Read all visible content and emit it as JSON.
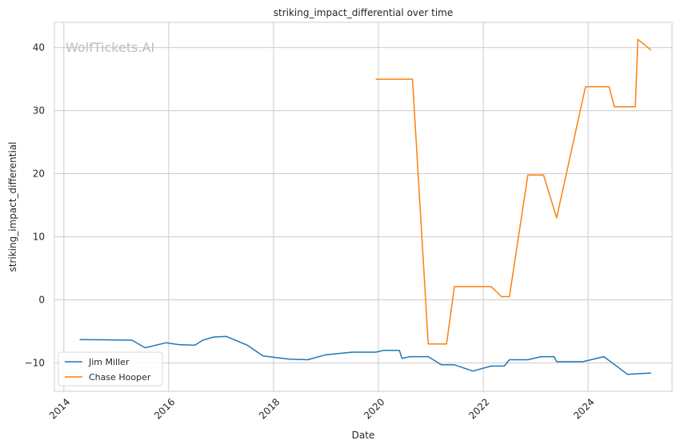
{
  "chart_data": {
    "type": "line",
    "title": "striking_impact_differential over time",
    "xlabel": "Date",
    "ylabel": "striking_impact_differential",
    "watermark": "WolfTickets.AI",
    "xlim": [
      2013.82,
      2025.6
    ],
    "ylim": [
      -14.5,
      44
    ],
    "x_ticks": [
      2014,
      2016,
      2018,
      2020,
      2022,
      2024
    ],
    "x_tick_labels": [
      "2014",
      "2016",
      "2018",
      "2020",
      "2022",
      "2024"
    ],
    "y_ticks": [
      -10,
      0,
      10,
      20,
      30,
      40
    ],
    "y_tick_labels": [
      "−10",
      "0",
      "10",
      "20",
      "30",
      "40"
    ],
    "grid": true,
    "legend_position": "lower-left",
    "series": [
      {
        "name": "Jim Miller",
        "color": "#1f77b4",
        "points": [
          [
            2014.3,
            -6.3
          ],
          [
            2015.3,
            -6.4
          ],
          [
            2015.55,
            -7.6
          ],
          [
            2015.95,
            -6.8
          ],
          [
            2016.2,
            -7.1
          ],
          [
            2016.5,
            -7.2
          ],
          [
            2016.65,
            -6.4
          ],
          [
            2016.85,
            -5.9
          ],
          [
            2017.1,
            -5.8
          ],
          [
            2017.5,
            -7.2
          ],
          [
            2017.8,
            -8.9
          ],
          [
            2018.3,
            -9.4
          ],
          [
            2018.65,
            -9.5
          ],
          [
            2019.0,
            -8.7
          ],
          [
            2019.5,
            -8.3
          ],
          [
            2019.95,
            -8.3
          ],
          [
            2020.1,
            -8.0
          ],
          [
            2020.4,
            -8.0
          ],
          [
            2020.45,
            -9.3
          ],
          [
            2020.6,
            -9.0
          ],
          [
            2020.95,
            -9.0
          ],
          [
            2021.2,
            -10.3
          ],
          [
            2021.45,
            -10.3
          ],
          [
            2021.8,
            -11.3
          ],
          [
            2022.15,
            -10.5
          ],
          [
            2022.4,
            -10.5
          ],
          [
            2022.5,
            -9.5
          ],
          [
            2022.85,
            -9.5
          ],
          [
            2023.1,
            -9.0
          ],
          [
            2023.35,
            -9.0
          ],
          [
            2023.4,
            -9.8
          ],
          [
            2023.9,
            -9.8
          ],
          [
            2024.3,
            -9.0
          ],
          [
            2024.75,
            -11.8
          ],
          [
            2025.2,
            -11.6
          ]
        ]
      },
      {
        "name": "Chase Hooper",
        "color": "#ff7f0e",
        "points": [
          [
            2019.95,
            35.0
          ],
          [
            2020.65,
            35.0
          ],
          [
            2020.95,
            -7.0
          ],
          [
            2021.3,
            -7.0
          ],
          [
            2021.45,
            2.1
          ],
          [
            2022.15,
            2.1
          ],
          [
            2022.35,
            0.5
          ],
          [
            2022.5,
            0.5
          ],
          [
            2022.85,
            19.8
          ],
          [
            2023.15,
            19.8
          ],
          [
            2023.4,
            13.0
          ],
          [
            2023.95,
            33.8
          ],
          [
            2024.4,
            33.8
          ],
          [
            2024.5,
            30.6
          ],
          [
            2024.9,
            30.6
          ],
          [
            2024.95,
            41.3
          ],
          [
            2025.2,
            39.6
          ]
        ]
      }
    ]
  }
}
